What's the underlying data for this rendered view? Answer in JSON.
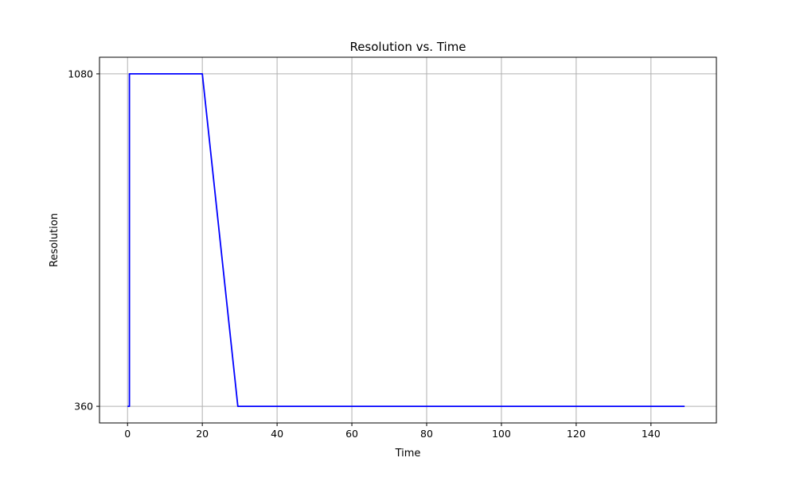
{
  "chart_data": {
    "type": "line",
    "title": "Resolution vs. Time",
    "xlabel": "Time",
    "ylabel": "Resolution",
    "xlim": [
      -7.5,
      157.5
    ],
    "ylim": [
      324,
      1116
    ],
    "x_ticks": [
      0,
      20,
      40,
      60,
      80,
      100,
      120,
      140
    ],
    "y_ticks": [
      360,
      1080
    ],
    "grid": true,
    "series": [
      {
        "color": "#0000ff",
        "x": [
          0,
          0.5,
          0.5,
          20,
          29.5,
          149
        ],
        "y": [
          360,
          360,
          1080,
          1080,
          360,
          360
        ]
      }
    ]
  },
  "colors": {
    "line": "#0000ff",
    "grid": "#b0b0b0",
    "axes": "#000000",
    "background": "#ffffff"
  }
}
